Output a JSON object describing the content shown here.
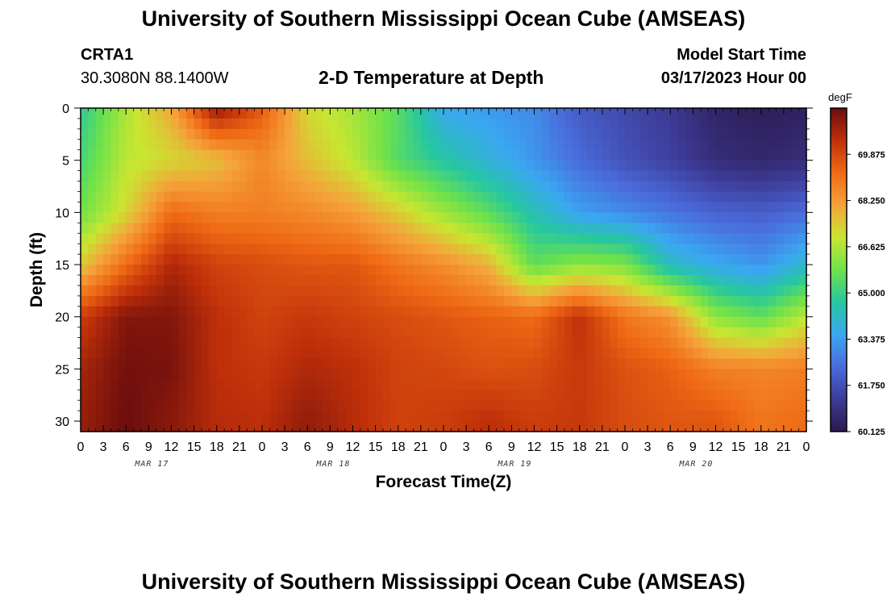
{
  "header": {
    "title": "University of Southern Mississippi Ocean Cube (AMSEAS)",
    "station": "CRTA1",
    "coords": "30.3080N  88.1400W",
    "subtitle": "2-D Temperature at Depth",
    "model_start_label": "Model Start Time",
    "model_start_value": "03/17/2023 Hour 00"
  },
  "footer": {
    "title": "University of Southern Mississippi Ocean Cube (AMSEAS)"
  },
  "chart_data": {
    "type": "heatmap",
    "title": "2-D Temperature at Depth",
    "xlabel": "Forecast Time(Z)",
    "ylabel": "Depth (ft)",
    "x_ticks": [
      "0",
      "3",
      "6",
      "9",
      "12",
      "15",
      "18",
      "21",
      "0",
      "3",
      "6",
      "9",
      "12",
      "15",
      "18",
      "21",
      "0",
      "3",
      "6",
      "9",
      "12",
      "15",
      "18",
      "21",
      "0",
      "3",
      "6",
      "9",
      "12",
      "15",
      "18",
      "21",
      "0"
    ],
    "date_labels": [
      {
        "label": "MAR 17",
        "hour": 9
      },
      {
        "label": "MAR 18",
        "hour": 33
      },
      {
        "label": "MAR 19",
        "hour": 57
      },
      {
        "label": "MAR 20",
        "hour": 81
      }
    ],
    "xlim": [
      0,
      96
    ],
    "y_ticks": [
      "0",
      "5",
      "10",
      "15",
      "20",
      "25",
      "30"
    ],
    "ylim": [
      0,
      31
    ],
    "colorbar": {
      "unit": "degF",
      "labels": [
        "69.875",
        "68.250",
        "66.625",
        "65.000",
        "63.375",
        "61.750",
        "60.125"
      ],
      "min": 60.125,
      "max": 71.5
    },
    "palette": [
      "#6b0d0d",
      "#c0300a",
      "#ef6a15",
      "#f5a23a",
      "#c8e631",
      "#6fe24a",
      "#26c7a0",
      "#3aa7f2",
      "#4a6bdb",
      "#3d3b97",
      "#2b1a4e"
    ],
    "hours": [
      0,
      6,
      12,
      18,
      24,
      30,
      36,
      42,
      48,
      54,
      60,
      66,
      72,
      78,
      84,
      90,
      96
    ],
    "depths_ft": [
      0,
      5,
      10,
      15,
      20,
      25,
      30
    ],
    "temperature_degF": [
      [
        64.8,
        66.6,
        68.0,
        71.0,
        69.5,
        67.2,
        66.5,
        65.5,
        63.6,
        63.3,
        63.0,
        62.0,
        61.6,
        61.2,
        60.5,
        60.3,
        60.4
      ],
      [
        65.2,
        66.8,
        67.2,
        67.6,
        68.6,
        67.6,
        66.8,
        65.4,
        64.6,
        63.9,
        63.2,
        62.4,
        61.8,
        61.4,
        60.8,
        60.6,
        60.8
      ],
      [
        65.8,
        67.2,
        69.2,
        68.8,
        68.8,
        68.6,
        68.2,
        67.4,
        66.4,
        65.5,
        64.4,
        63.4,
        63.0,
        62.6,
        62.2,
        62.1,
        62.4
      ],
      [
        67.4,
        69.2,
        70.6,
        70.0,
        69.8,
        69.6,
        69.6,
        69.0,
        68.5,
        67.8,
        65.6,
        66.2,
        66.0,
        64.2,
        63.6,
        63.2,
        64.1
      ],
      [
        70.1,
        71.2,
        71.2,
        70.4,
        70.0,
        70.2,
        70.0,
        69.8,
        69.6,
        69.4,
        69.2,
        70.4,
        69.0,
        68.4,
        66.2,
        65.6,
        66.8
      ],
      [
        70.7,
        71.4,
        71.3,
        70.4,
        70.2,
        70.6,
        70.4,
        70.0,
        69.9,
        69.7,
        69.8,
        70.2,
        69.7,
        69.4,
        68.8,
        68.7,
        68.8
      ],
      [
        70.9,
        71.5,
        71.1,
        70.5,
        70.4,
        71.0,
        70.5,
        70.0,
        70.1,
        70.4,
        70.1,
        70.2,
        69.8,
        69.6,
        69.6,
        69.0,
        69.2
      ]
    ]
  }
}
